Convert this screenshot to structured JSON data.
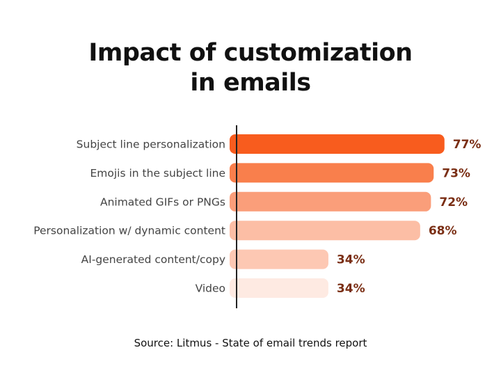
{
  "chart_data": {
    "type": "bar",
    "orientation": "horizontal",
    "title": [
      "Impact of customization",
      "in emails"
    ],
    "categories": [
      "Subject line personalization",
      "Emojis in the subject line",
      "Animated GIFs or PNGs",
      "Personalization w/ dynamic content",
      "AI-generated content/copy",
      "Video"
    ],
    "values": [
      77,
      73,
      72,
      68,
      34,
      34
    ],
    "value_labels": [
      "77%",
      "73%",
      "72%",
      "68%",
      "34%",
      "34%"
    ],
    "colors": [
      "#f85c1e",
      "#f97f4c",
      "#fa9e7a",
      "#fcbea5",
      "#fdc8b3",
      "#feeae2"
    ],
    "label_color": "#7a2e14",
    "xlabel": "",
    "ylabel": "",
    "grid": false,
    "source": "Source: Litmus - State of email trends report"
  }
}
